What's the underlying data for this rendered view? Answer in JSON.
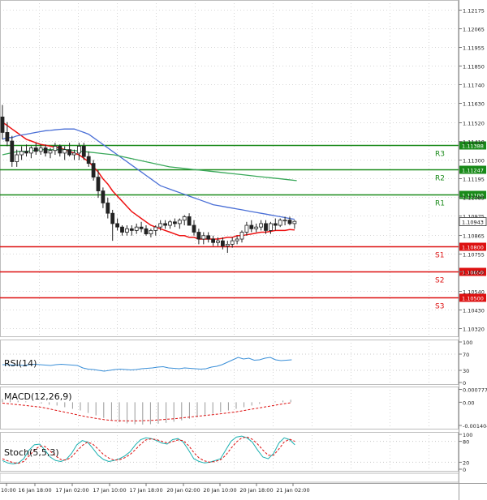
{
  "chart_data": {
    "type": "candlestick",
    "price_panel": {
      "ylim": [
        1.1027,
        1.1223
      ],
      "y_ticks": [
        "1.12175",
        "1.12065",
        "1.11955",
        "1.11850",
        "1.11740",
        "1.11630",
        "1.11520",
        "1.11410",
        "1.11300",
        "1.11195",
        "1.11085",
        "1.10975",
        "1.10865",
        "1.10755",
        "1.10650",
        "1.10540",
        "1.10430",
        "1.10320"
      ],
      "current_price": "1.10943",
      "levels": [
        {
          "name": "R3",
          "value": 1.11388,
          "label": "1.11388",
          "color": "#1a8a1a"
        },
        {
          "name": "R2",
          "value": 1.11247,
          "label": "1.11247",
          "color": "#1a8a1a"
        },
        {
          "name": "R1",
          "value": 1.111,
          "label": "1.11100",
          "color": "#1a8a1a"
        },
        {
          "name": "S1",
          "value": 1.108,
          "label": "1.10800",
          "color": "#dd1111"
        },
        {
          "name": "S2",
          "value": 1.1065,
          "label": "1.10650",
          "color": "#dd1111"
        },
        {
          "name": "S3",
          "value": 1.105,
          "label": "1.10500",
          "color": "#dd1111"
        }
      ],
      "candles": [
        [
          1.1155,
          1.1162,
          1.1142,
          1.1146
        ],
        [
          1.1146,
          1.1152,
          1.1138,
          1.1141
        ],
        [
          1.1141,
          1.1144,
          1.1126,
          1.1129
        ],
        [
          1.1129,
          1.1136,
          1.1126,
          1.1133
        ],
        [
          1.1133,
          1.1138,
          1.113,
          1.1135
        ],
        [
          1.1135,
          1.1139,
          1.1132,
          1.1134
        ],
        [
          1.1134,
          1.1138,
          1.1131,
          1.1137
        ],
        [
          1.1137,
          1.114,
          1.1133,
          1.1135
        ],
        [
          1.1135,
          1.1139,
          1.1133,
          1.1137
        ],
        [
          1.1137,
          1.1139,
          1.1132,
          1.1134
        ],
        [
          1.1134,
          1.1137,
          1.1131,
          1.11355
        ],
        [
          1.11355,
          1.114,
          1.1133,
          1.1138
        ],
        [
          1.1138,
          1.1139,
          1.1132,
          1.1134
        ],
        [
          1.1134,
          1.1138,
          1.113,
          1.1136
        ],
        [
          1.1136,
          1.114,
          1.1132,
          1.1133
        ],
        [
          1.1133,
          1.1136,
          1.113,
          1.1134
        ],
        [
          1.1134,
          1.114,
          1.113,
          1.1138
        ],
        [
          1.1138,
          1.114,
          1.113,
          1.1132
        ],
        [
          1.1132,
          1.1135,
          1.1126,
          1.1128
        ],
        [
          1.1128,
          1.113,
          1.1118,
          1.112
        ],
        [
          1.112,
          1.1124,
          1.1108,
          1.1112
        ],
        [
          1.1112,
          1.1114,
          1.1102,
          1.1105
        ],
        [
          1.1105,
          1.1108,
          1.1096,
          1.1099
        ],
        [
          1.1099,
          1.1101,
          1.1083,
          1.1093
        ],
        [
          1.1093,
          1.1096,
          1.1089,
          1.1091
        ],
        [
          1.1091,
          1.1092,
          1.1086,
          1.1088
        ],
        [
          1.1088,
          1.1092,
          1.1086,
          1.109
        ],
        [
          1.109,
          1.1092,
          1.1086,
          1.1089
        ],
        [
          1.1089,
          1.1093,
          1.1087,
          1.1091
        ],
        [
          1.1091,
          1.1094,
          1.1088,
          1.109
        ],
        [
          1.109,
          1.1092,
          1.1086,
          1.1087
        ],
        [
          1.1087,
          1.109,
          1.1085,
          1.1089
        ],
        [
          1.1089,
          1.1092,
          1.1086,
          1.1091
        ],
        [
          1.1091,
          1.1095,
          1.1089,
          1.1093
        ],
        [
          1.1093,
          1.1095,
          1.109,
          1.1092
        ],
        [
          1.1092,
          1.1095,
          1.109,
          1.1094
        ],
        [
          1.1094,
          1.1096,
          1.1091,
          1.1093
        ],
        [
          1.1093,
          1.1096,
          1.109,
          1.1095
        ],
        [
          1.1095,
          1.1098,
          1.1092,
          1.1097
        ],
        [
          1.1097,
          1.1099,
          1.1092,
          1.1092
        ],
        [
          1.1092,
          1.1095,
          1.1086,
          1.1088
        ],
        [
          1.1088,
          1.109,
          1.1081,
          1.1084
        ],
        [
          1.1084,
          1.1088,
          1.1081,
          1.1086
        ],
        [
          1.1086,
          1.1088,
          1.1082,
          1.1084
        ],
        [
          1.1084,
          1.1086,
          1.108,
          1.1082
        ],
        [
          1.1082,
          1.1085,
          1.108,
          1.1083
        ],
        [
          1.1083,
          1.1085,
          1.1078,
          1.108
        ],
        [
          1.108,
          1.1083,
          1.1076,
          1.1081
        ],
        [
          1.1081,
          1.1085,
          1.1079,
          1.1083
        ],
        [
          1.1083,
          1.1086,
          1.1081,
          1.1084
        ],
        [
          1.1084,
          1.1089,
          1.1082,
          1.1088
        ],
        [
          1.1088,
          1.1094,
          1.1086,
          1.1092
        ],
        [
          1.1092,
          1.1095,
          1.1088,
          1.109
        ],
        [
          1.109,
          1.1093,
          1.1088,
          1.1091
        ],
        [
          1.1091,
          1.1095,
          1.1089,
          1.1093
        ],
        [
          1.1093,
          1.1095,
          1.1087,
          1.1089
        ],
        [
          1.1089,
          1.1094,
          1.1087,
          1.1093
        ],
        [
          1.1093,
          1.1096,
          1.1089,
          1.1092
        ],
        [
          1.1092,
          1.1096,
          1.1091,
          1.1095
        ],
        [
          1.1095,
          1.1097,
          1.1092,
          1.1095
        ],
        [
          1.1095,
          1.1097,
          1.1092,
          1.1093
        ],
        [
          1.1093,
          1.1095,
          1.109,
          1.10943
        ]
      ],
      "ma_red": [
        1.1152,
        1.115,
        1.1148,
        1.1146,
        1.1144,
        1.1142,
        1.1141,
        1.114,
        1.1139,
        1.11385,
        1.1138,
        1.11375,
        1.1137,
        1.1136,
        1.1135,
        1.1134,
        1.1133,
        1.1131,
        1.1129,
        1.1126,
        1.1123,
        1.1119,
        1.1116,
        1.1112,
        1.1109,
        1.1106,
        1.1103,
        1.11,
        1.1098,
        1.1096,
        1.1094,
        1.1092,
        1.1091,
        1.109,
        1.1089,
        1.1088,
        1.1087,
        1.1086,
        1.1086,
        1.1085,
        1.1085,
        1.1084,
        1.1084,
        1.1084,
        1.1084,
        1.1084,
        1.10845,
        1.1085,
        1.1085,
        1.1086,
        1.1086,
        1.10865,
        1.1087,
        1.10875,
        1.1088,
        1.1088,
        1.10885,
        1.1089,
        1.1089,
        1.1089,
        1.10895,
        1.10893
      ],
      "ma_blue": [
        1.1142,
        1.1143,
        1.1143,
        1.1144,
        1.11445,
        1.1145,
        1.11455,
        1.1146,
        1.11465,
        1.1147,
        1.11472,
        1.11475,
        1.11478,
        1.1148,
        1.1148,
        1.1148,
        1.1147,
        1.1146,
        1.1145,
        1.1143,
        1.1141,
        1.1139,
        1.1137,
        1.1135,
        1.1133,
        1.1131,
        1.1129,
        1.1127,
        1.1125,
        1.1123,
        1.1121,
        1.1119,
        1.1117,
        1.1115,
        1.1114,
        1.1113,
        1.1112,
        1.1111,
        1.111,
        1.1109,
        1.1108,
        1.1107,
        1.1106,
        1.1105,
        1.1104,
        1.11035,
        1.1103,
        1.11025,
        1.1102,
        1.11015,
        1.1101,
        1.11005,
        1.11,
        1.10995,
        1.1099,
        1.10985,
        1.1098,
        1.10975,
        1.1097,
        1.10965,
        1.1096,
        1.10955
      ],
      "ma_green": [
        1.1133,
        1.1134,
        1.1135,
        1.1135,
        1.11355,
        1.1136,
        1.1136,
        1.1136,
        1.1136,
        1.11355,
        1.1135,
        1.11345,
        1.1134,
        1.11335,
        1.1133,
        1.1132,
        1.1131,
        1.113,
        1.1129,
        1.1128,
        1.1127,
        1.1126,
        1.11255,
        1.1125,
        1.11245,
        1.1124,
        1.11235,
        1.1123,
        1.11225,
        1.1122,
        1.11215,
        1.1121,
        1.11205,
        1.112,
        1.11195,
        1.1119,
        1.11185,
        1.1118
      ]
    },
    "x_ticks": [
      "10:00",
      "16 Jan 18:00",
      "17 Jan 02:00",
      "17 Jan 10:00",
      "17 Jan 18:00",
      "20 Jan 02:00",
      "20 Jan 10:00",
      "20 Jan 18:00",
      "21 Jan 02:00"
    ],
    "rsi": {
      "label": "RSI(14)",
      "y_ticks": [
        "100",
        "70",
        "30",
        "0"
      ],
      "ylim": [
        0,
        100
      ],
      "values": [
        44,
        44,
        43,
        43,
        42,
        44,
        45,
        44,
        43,
        42,
        44,
        45,
        44,
        43,
        42,
        36,
        33,
        32,
        30,
        28,
        30,
        32,
        33,
        32,
        31,
        32,
        34,
        35,
        36,
        38,
        39,
        36,
        35,
        34,
        36,
        35,
        34,
        33,
        34,
        38,
        40,
        44,
        50,
        56,
        62,
        58,
        60,
        55,
        56,
        60,
        62,
        56,
        54,
        55,
        56
      ]
    },
    "macd": {
      "label": "MACD(12,26,9)",
      "y_ticks": [
        "0.000777",
        "0.00",
        "-0.001404"
      ],
      "ylim": [
        -0.00165,
        0.00095
      ],
      "hist": [
        0.0002,
        0.00015,
        0.0001,
        5e-05,
        0,
        -8e-05,
        -0.00015,
        -0.0002,
        -0.0003,
        -0.0004,
        -0.0005,
        -0.00065,
        -0.0008,
        -0.00095,
        -0.0011,
        -0.0012,
        -0.00128,
        -0.00133,
        -0.00135,
        -0.00133,
        -0.0013,
        -0.00125,
        -0.00118,
        -0.0011,
        -0.001,
        -0.0009,
        -0.0008,
        -0.0007,
        -0.0006,
        -0.0005,
        -0.0004,
        -0.0003,
        -0.0002,
        -0.0001,
        0,
        5e-05,
        0.0001,
        0.00015
      ],
      "signal": [
        -5e-05,
        -0.0001,
        -0.00015,
        -0.0002,
        -0.00025,
        -0.0003,
        -0.0004,
        -0.0005,
        -0.0006,
        -0.0007,
        -0.0008,
        -0.0009,
        -0.00098,
        -0.00105,
        -0.0011,
        -0.00112,
        -0.00113,
        -0.00113,
        -0.00112,
        -0.0011,
        -0.00107,
        -0.00103,
        -0.001,
        -0.00095,
        -0.0009,
        -0.00085,
        -0.0008,
        -0.00075,
        -0.0007,
        -0.00064,
        -0.00058,
        -0.0005,
        -0.00042,
        -0.00034,
        -0.00026,
        -0.00018,
        -0.0001,
        -3e-05
      ]
    },
    "stoch": {
      "label": "Stoch(5,5,3)",
      "y_ticks": [
        "100",
        "80",
        "20",
        "0"
      ],
      "ylim": [
        0,
        100
      ],
      "k": [
        25,
        18,
        15,
        18,
        30,
        55,
        70,
        72,
        55,
        35,
        25,
        22,
        28,
        45,
        70,
        82,
        78,
        60,
        40,
        28,
        22,
        25,
        30,
        38,
        50,
        70,
        85,
        90,
        88,
        82,
        75,
        72,
        85,
        88,
        78,
        55,
        30,
        22,
        18,
        20,
        25,
        30,
        55,
        80,
        92,
        95,
        90,
        78,
        55,
        35,
        30,
        45,
        75,
        90,
        85,
        70
      ],
      "d": [
        30,
        24,
        19,
        17,
        22,
        38,
        55,
        66,
        65,
        52,
        38,
        28,
        26,
        35,
        52,
        68,
        78,
        72,
        58,
        42,
        32,
        26,
        27,
        33,
        42,
        56,
        72,
        84,
        87,
        85,
        80,
        75,
        79,
        84,
        82,
        68,
        48,
        32,
        24,
        20,
        22,
        27,
        40,
        60,
        78,
        90,
        92,
        86,
        72,
        55,
        40,
        40,
        58,
        78,
        86,
        80
      ]
    },
    "colors": {
      "red_ma": "#ee1111",
      "blue_ma": "#4a6fd6",
      "green_ma": "#3aa85a",
      "rsi_line": "#3a8fd8",
      "macd_hist": "#9a9a9a",
      "signal": "#dd1111",
      "stoch_k": "#1ab0b0",
      "stoch_d": "#dd1111"
    }
  }
}
